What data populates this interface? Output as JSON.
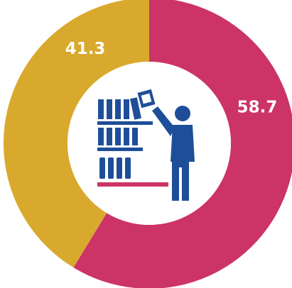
{
  "chart_data": {
    "type": "pie",
    "categories": [
      "",
      ""
    ],
    "values": [
      58.7,
      41.3
    ],
    "labels": [
      "58.7",
      "41.3"
    ],
    "colors": [
      "#cc3366",
      "#d9a92e"
    ],
    "title": "",
    "center_icon": "person-stocking-shelves-icon",
    "icon_colors": {
      "primary": "#1f4e99",
      "shelf": "#cc3366"
    }
  }
}
